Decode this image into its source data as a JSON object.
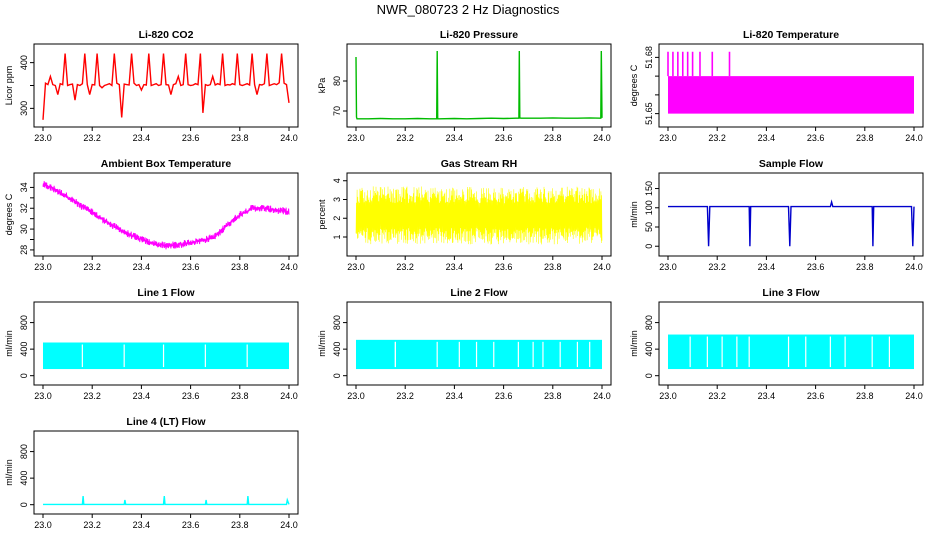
{
  "page_title": "NWR_080723  2 Hz Diagnostics",
  "chart_data": [
    {
      "type": "line",
      "title": "Li-820 CO2",
      "ylabel": "Licor ppm",
      "color": "#ff0000",
      "xlim": [
        23.0,
        24.0
      ],
      "ylim": [
        268,
        432
      ],
      "xticks": [
        "23.0",
        "23.2",
        "23.4",
        "23.6",
        "23.8",
        "24.0"
      ],
      "yticks": [
        300,
        350,
        400
      ],
      "ytick_labels": [
        "300",
        "",
        "400"
      ],
      "series": [
        {
          "x": [
            23.0,
            23.01,
            23.02,
            23.03,
            23.04,
            23.05,
            23.06,
            23.07,
            23.08,
            23.09,
            23.1,
            23.11,
            23.12,
            23.13,
            23.14,
            23.15,
            23.16,
            23.17,
            23.18,
            23.19,
            23.2,
            23.21,
            23.22,
            23.23,
            23.24,
            23.25,
            23.26,
            23.27,
            23.28,
            23.29,
            23.3,
            23.31,
            23.32,
            23.33,
            23.34,
            23.35,
            23.36,
            23.37,
            23.38,
            23.39,
            23.4,
            23.41,
            23.42,
            23.43,
            23.44,
            23.45,
            23.46,
            23.47,
            23.48,
            23.49,
            23.5,
            23.51,
            23.52,
            23.53,
            23.54,
            23.55,
            23.56,
            23.57,
            23.58,
            23.59,
            23.6,
            23.61,
            23.62,
            23.63,
            23.64,
            23.65,
            23.66,
            23.67,
            23.68,
            23.69,
            23.7,
            23.71,
            23.72,
            23.73,
            23.74,
            23.75,
            23.76,
            23.77,
            23.78,
            23.79,
            23.8,
            23.81,
            23.82,
            23.83,
            23.84,
            23.85,
            23.86,
            23.87,
            23.88,
            23.89,
            23.9,
            23.91,
            23.92,
            23.93,
            23.94,
            23.95,
            23.96,
            23.97,
            23.98,
            23.99,
            24.0
          ],
          "y": [
            275,
            355,
            352,
            370,
            352,
            350,
            330,
            354,
            352,
            420,
            350,
            352,
            353,
            318,
            352,
            350,
            354,
            420,
            352,
            330,
            352,
            351,
            420,
            350,
            345,
            350,
            352,
            354,
            350,
            420,
            355,
            352,
            280,
            353,
            352,
            351,
            420,
            355,
            350,
            352,
            340,
            352,
            351,
            420,
            350,
            352,
            354,
            350,
            352,
            420,
            352,
            351,
            330,
            352,
            354,
            370,
            350,
            352,
            420,
            352,
            350,
            351,
            354,
            352,
            420,
            290,
            352,
            350,
            352,
            370,
            351,
            354,
            352,
            420,
            350,
            352,
            351,
            354,
            352,
            420,
            352,
            350,
            352,
            354,
            351,
            420,
            352,
            330,
            352,
            351,
            354,
            420,
            350,
            352,
            354,
            352,
            356,
            420,
            355,
            352,
            312
          ]
        }
      ]
    },
    {
      "type": "line",
      "title": "Li-820 Pressure",
      "ylabel": "kPa",
      "color": "#00bb00",
      "xlim": [
        23.0,
        24.0
      ],
      "ylim": [
        66,
        91
      ],
      "xticks": [
        "23.0",
        "23.2",
        "23.4",
        "23.6",
        "23.8",
        "24.0"
      ],
      "yticks": [
        70,
        80
      ],
      "ytick_labels": [
        "70",
        "80"
      ],
      "series": [
        {
          "x": [
            23.0,
            23.002,
            23.004,
            23.01,
            23.05,
            23.1,
            23.15,
            23.2,
            23.25,
            23.3,
            23.328,
            23.33,
            23.332,
            23.34,
            23.4,
            23.45,
            23.5,
            23.55,
            23.6,
            23.65,
            23.662,
            23.664,
            23.666,
            23.67,
            23.7,
            23.75,
            23.8,
            23.85,
            23.9,
            23.95,
            23.995,
            23.997,
            24.0
          ],
          "y": [
            88,
            68,
            67.4,
            67.4,
            67.4,
            67.5,
            67.4,
            67.4,
            67.5,
            67.4,
            67.4,
            90,
            67.4,
            67.4,
            67.5,
            67.4,
            67.5,
            67.6,
            67.5,
            67.6,
            67.6,
            90,
            67.7,
            67.6,
            67.6,
            67.6,
            67.7,
            67.6,
            67.6,
            67.7,
            67.6,
            90,
            67.7
          ]
        }
      ]
    },
    {
      "type": "line",
      "title": "Li-820 Temperature",
      "ylabel": "degrees C",
      "color": "#ff00ff",
      "xlim": [
        23.0,
        24.0
      ],
      "ylim": [
        51.645,
        51.685
      ],
      "xticks": [
        "23.0",
        "23.2",
        "23.4",
        "23.6",
        "23.8",
        "24.0"
      ],
      "yticks": [
        51.65,
        51.66,
        51.67,
        51.68
      ],
      "ytick_labels": [
        "51.65",
        "",
        "",
        "51.68"
      ],
      "band": {
        "x0": 23.0,
        "x1": 24.0,
        "ymin": 51.65,
        "ymax": 51.67
      },
      "spikes": [
        {
          "x": 23.0,
          "y": 51.683
        },
        {
          "x": 23.02,
          "y": 51.683
        },
        {
          "x": 23.04,
          "y": 51.683
        },
        {
          "x": 23.06,
          "y": 51.683
        },
        {
          "x": 23.08,
          "y": 51.683
        },
        {
          "x": 23.1,
          "y": 51.683
        },
        {
          "x": 23.13,
          "y": 51.683
        },
        {
          "x": 23.18,
          "y": 51.683
        },
        {
          "x": 23.25,
          "y": 51.683
        }
      ]
    },
    {
      "type": "line",
      "title": "Ambient Box Temperature",
      "ylabel": "degrees C",
      "color": "#ff00ff",
      "xlim": [
        23.0,
        24.0
      ],
      "ylim": [
        27.8,
        35
      ],
      "xticks": [
        "23.0",
        "23.2",
        "23.4",
        "23.6",
        "23.8",
        "24.0"
      ],
      "yticks": [
        28,
        29,
        30,
        31,
        32,
        33,
        34
      ],
      "ytick_labels": [
        "28",
        "",
        "30",
        "",
        "32",
        "",
        "34"
      ],
      "noise": 0.35,
      "series": [
        {
          "x": [
            23.0,
            23.05,
            23.1,
            23.15,
            23.2,
            23.25,
            23.3,
            23.35,
            23.4,
            23.45,
            23.5,
            23.55,
            23.6,
            23.65,
            23.7,
            23.75,
            23.8,
            23.85,
            23.9,
            23.95,
            24.0
          ],
          "y": [
            34.3,
            33.8,
            33.1,
            32.3,
            31.6,
            30.8,
            30.1,
            29.5,
            29.0,
            28.6,
            28.4,
            28.5,
            28.7,
            28.9,
            29.3,
            30.4,
            31.4,
            32.0,
            32.0,
            31.8,
            31.7
          ]
        }
      ]
    },
    {
      "type": "line",
      "title": "Gas Stream RH",
      "ylabel": "percent",
      "color": "#ffff00",
      "xlim": [
        23.0,
        24.0
      ],
      "ylim": [
        0.2,
        4.2
      ],
      "xticks": [
        "23.0",
        "23.2",
        "23.4",
        "23.6",
        "23.8",
        "24.0"
      ],
      "yticks": [
        1,
        2,
        3,
        4
      ],
      "ytick_labels": [
        "1",
        "2",
        "3",
        "4"
      ],
      "band": {
        "x0": 23.0,
        "x1": 24.0,
        "ymin": 0.6,
        "ymax": 3.7
      }
    },
    {
      "type": "line",
      "title": "Sample Flow",
      "ylabel": "ml/min",
      "color": "#0000cc",
      "xlim": [
        23.0,
        24.0
      ],
      "ylim": [
        -15,
        180
      ],
      "xticks": [
        "23.0",
        "23.2",
        "23.4",
        "23.6",
        "23.8",
        "24.0"
      ],
      "yticks": [
        0,
        50,
        100,
        150
      ],
      "ytick_labels": [
        "0",
        "50",
        "100",
        "150"
      ],
      "series": [
        {
          "x": [
            23.0,
            23.16,
            23.165,
            23.17,
            23.33,
            23.333,
            23.336,
            23.49,
            23.495,
            23.5,
            23.66,
            23.665,
            23.67,
            23.83,
            23.833,
            23.836,
            23.99,
            23.995,
            24.0
          ],
          "y": [
            103,
            103,
            0,
            103,
            103,
            0,
            103,
            103,
            0,
            103,
            103,
            115,
            103,
            103,
            0,
            103,
            103,
            0,
            103
          ]
        }
      ]
    },
    {
      "type": "area",
      "title": "Line 1 Flow",
      "ylabel": "ml/min",
      "color": "#00ffff",
      "xlim": [
        23.0,
        24.0
      ],
      "ylim": [
        -80,
        1050
      ],
      "xticks": [
        "23.0",
        "23.2",
        "23.4",
        "23.6",
        "23.8",
        "24.0"
      ],
      "yticks": [
        0,
        400,
        800
      ],
      "ytick_labels": [
        "0",
        "400",
        "800"
      ],
      "band": {
        "x0": 23.0,
        "x1": 24.0,
        "ymin": 100,
        "ymax": 500
      },
      "gaps": [
        23.16,
        23.33,
        23.49,
        23.66,
        23.83
      ]
    },
    {
      "type": "area",
      "title": "Line 2 Flow",
      "ylabel": "ml/min",
      "color": "#00ffff",
      "xlim": [
        23.0,
        24.0
      ],
      "ylim": [
        -80,
        1050
      ],
      "xticks": [
        "23.0",
        "23.2",
        "23.4",
        "23.6",
        "23.8",
        "24.0"
      ],
      "yticks": [
        0,
        400,
        800
      ],
      "ytick_labels": [
        "0",
        "400",
        "800"
      ],
      "band": {
        "x0": 23.0,
        "x1": 24.0,
        "ymin": 100,
        "ymax": 540
      },
      "gaps": [
        23.16,
        23.16,
        23.33,
        23.42,
        23.49,
        23.56,
        23.66,
        23.72,
        23.76,
        23.83,
        23.9,
        23.95
      ]
    },
    {
      "type": "area",
      "title": "Line 3 Flow",
      "ylabel": "ml/min",
      "color": "#00ffff",
      "xlim": [
        23.0,
        24.0
      ],
      "ylim": [
        -80,
        1050
      ],
      "xticks": [
        "23.0",
        "23.2",
        "23.4",
        "23.6",
        "23.8",
        "24.0"
      ],
      "yticks": [
        0,
        400,
        800
      ],
      "ytick_labels": [
        "0",
        "400",
        "800"
      ],
      "band": {
        "x0": 23.0,
        "x1": 24.0,
        "ymin": 100,
        "ymax": 620
      },
      "gaps": [
        23.09,
        23.16,
        23.22,
        23.28,
        23.33,
        23.49,
        23.56,
        23.66,
        23.72,
        23.83,
        23.9
      ]
    },
    {
      "type": "line",
      "title": "Line 4 (LT) Flow",
      "ylabel": "ml/min",
      "color": "#00ffff",
      "xlim": [
        23.0,
        24.0
      ],
      "ylim": [
        -80,
        1050
      ],
      "xticks": [
        "23.0",
        "23.2",
        "23.4",
        "23.6",
        "23.8",
        "24.0"
      ],
      "yticks": [
        0,
        400,
        800
      ],
      "ytick_labels": [
        "0",
        "400",
        "800"
      ],
      "series": [
        {
          "x": [
            23.0,
            23.16,
            23.163,
            23.166,
            23.33,
            23.333,
            23.336,
            23.49,
            23.493,
            23.496,
            23.66,
            23.663,
            23.666,
            23.83,
            23.833,
            23.836,
            23.99,
            23.993,
            24.0
          ],
          "y": [
            5,
            5,
            130,
            5,
            5,
            70,
            5,
            5,
            130,
            5,
            5,
            70,
            5,
            5,
            130,
            5,
            5,
            70,
            5
          ]
        }
      ]
    }
  ]
}
